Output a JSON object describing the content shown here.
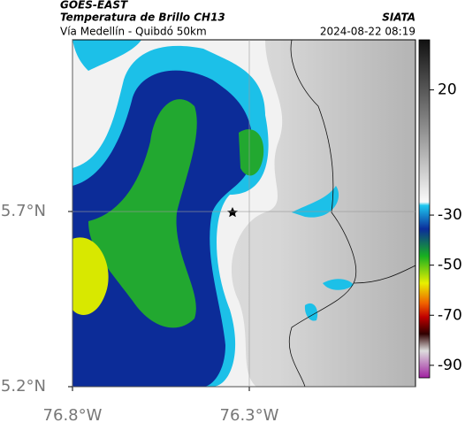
{
  "header": {
    "title": "GOES-EAST",
    "subtitle": "Temperatura de Brillo CH13",
    "source": "SIATA",
    "route": "Vía Medellín - Quibdó 50km",
    "datetime": "2024-08-22 08:19"
  },
  "map": {
    "xlim": [
      -76.8,
      -75.83
    ],
    "ylim": [
      5.2,
      6.19
    ],
    "xticks": [
      {
        "value": -76.8,
        "label": "76.8°W"
      },
      {
        "value": -76.3,
        "label": "76.3°W"
      }
    ],
    "yticks": [
      {
        "value": 5.7,
        "label": "5.7°N"
      },
      {
        "value": 5.2,
        "label": "5.2°N"
      }
    ],
    "colorbar": {
      "lim": [
        -95,
        40
      ],
      "ticks": [
        20,
        -30,
        -50,
        -70,
        -90
      ]
    }
  }
}
